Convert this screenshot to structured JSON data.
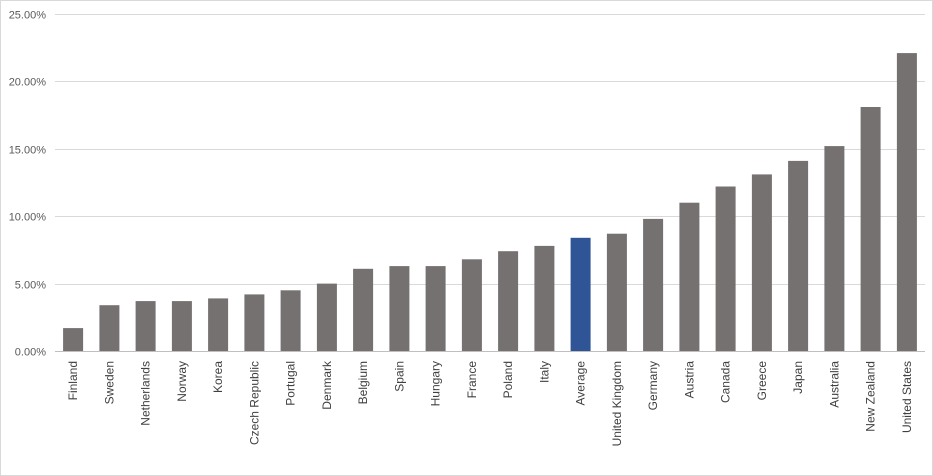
{
  "chart_data": {
    "type": "bar",
    "title": "",
    "xlabel": "",
    "ylabel": "",
    "ylim": [
      0,
      25
    ],
    "y_tick_step": 5,
    "y_tick_labels": [
      "0.00%",
      "5.00%",
      "10.00%",
      "15.00%",
      "20.00%",
      "25.00%"
    ],
    "grid": true,
    "legend": "none",
    "categories": [
      "Finland",
      "Sweden",
      "Netherlands",
      "Norway",
      "Korea",
      "Czech Republic",
      "Portugal",
      "Denmark",
      "Belgium",
      "Spain",
      "Hungary",
      "France",
      "Poland",
      "Italy",
      "Average",
      "United Kingdom",
      "Germany",
      "Austria",
      "Canada",
      "Greece",
      "Japan",
      "Australia",
      "New Zealand",
      "United States"
    ],
    "values": [
      1.7,
      3.4,
      3.7,
      3.7,
      3.9,
      4.2,
      4.5,
      5.0,
      6.1,
      6.3,
      6.3,
      6.8,
      7.4,
      7.8,
      8.4,
      8.7,
      9.8,
      11.0,
      12.2,
      13.1,
      14.1,
      15.2,
      18.1,
      22.1
    ],
    "colors": {
      "default_bar": "#767171",
      "highlight_bar": "#2f5597",
      "gridline": "#d9d9d9",
      "axis": "#bfbfbf"
    },
    "highlight_category": "Average"
  }
}
